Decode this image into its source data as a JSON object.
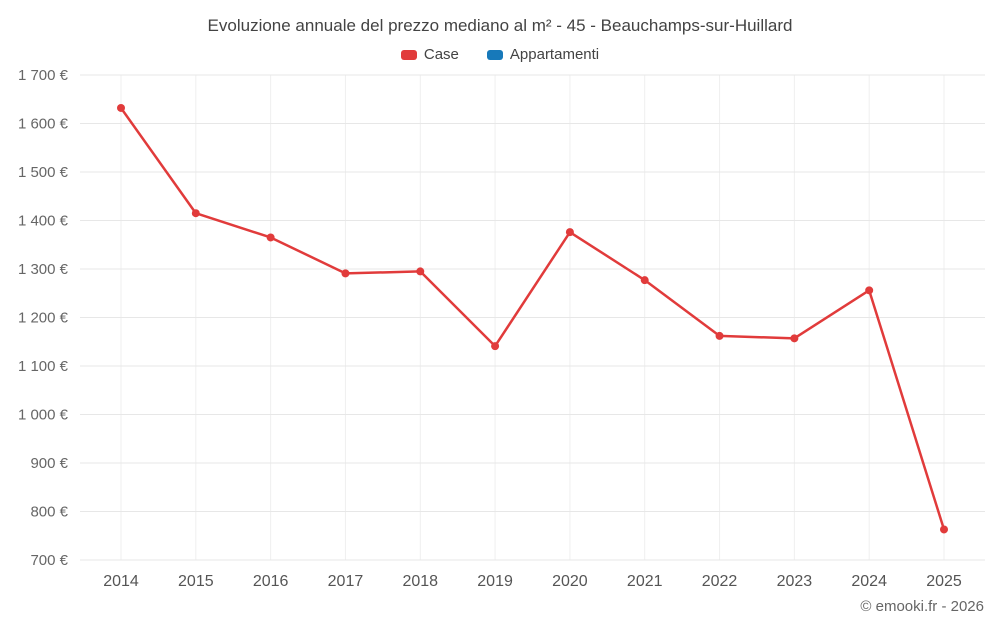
{
  "footer": {
    "copyright": "© emooki.fr - 2026"
  },
  "legend": [
    {
      "label": "Case",
      "color": "#e13b3b"
    },
    {
      "label": "Appartamenti",
      "color": "#1779ba"
    }
  ],
  "chart_data": {
    "type": "line",
    "title": "Evoluzione annuale del prezzo mediano al m² - 45 - Beauchamps-sur-Huillard",
    "x": [
      2014,
      2015,
      2016,
      2017,
      2018,
      2019,
      2020,
      2021,
      2022,
      2023,
      2024,
      2025
    ],
    "series": [
      {
        "name": "Case",
        "color": "#e13b3b",
        "values": [
          1632,
          1415,
          1365,
          1291,
          1295,
          1141,
          1376,
          1277,
          1162,
          1157,
          1256,
          763
        ]
      },
      {
        "name": "Appartamenti",
        "color": "#1779ba",
        "values": []
      }
    ],
    "xlabel": "",
    "ylabel": "",
    "ylim": [
      700,
      1700
    ],
    "ytick_step": 100,
    "y_format": "{value} €",
    "grid": true,
    "legend_position": "top",
    "marker": "circle"
  }
}
